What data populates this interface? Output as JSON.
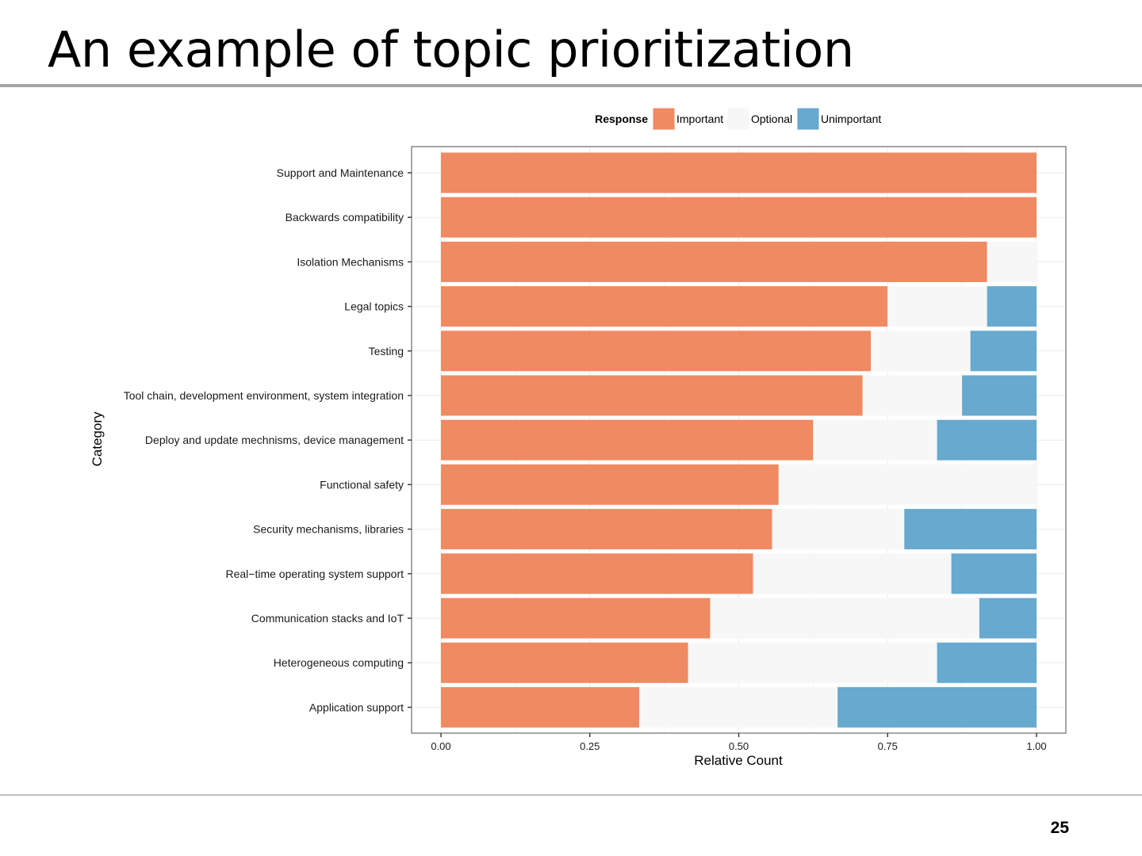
{
  "slide": {
    "title": "An example of topic prioritization",
    "page_number": "25"
  },
  "chart_data": {
    "type": "bar",
    "orientation": "horizontal",
    "stacked": true,
    "xlabel": "Relative Count",
    "ylabel": "Category",
    "xlim": [
      0,
      1
    ],
    "xticks": [
      "0.00",
      "0.25",
      "0.50",
      "0.75",
      "1.00"
    ],
    "grid": true,
    "legend": {
      "title": "Response",
      "position": "top"
    },
    "categories": [
      "Support and Maintenance",
      "Backwards compatibility",
      "Isolation Mechanisms",
      "Legal topics",
      "Testing",
      "Tool chain, development environment, system integration",
      "Deploy and update mechnisms, device management",
      "Functional safety",
      "Security mechanisms, libraries",
      "Real−time operating system support",
      "Communication stacks and IoT",
      "Heterogeneous computing",
      "Application support"
    ],
    "series": [
      {
        "name": "Important",
        "color": "#ef8a62",
        "values": [
          1.0,
          1.0,
          0.917,
          0.75,
          0.722,
          0.708,
          0.625,
          0.567,
          0.556,
          0.524,
          0.452,
          0.415,
          0.333
        ]
      },
      {
        "name": "Optional",
        "color": "#f7f7f7",
        "values": [
          0.0,
          0.0,
          0.083,
          0.167,
          0.167,
          0.167,
          0.208,
          0.433,
          0.222,
          0.333,
          0.452,
          0.418,
          0.333
        ]
      },
      {
        "name": "Unimportant",
        "color": "#67a9cf",
        "values": [
          0.0,
          0.0,
          0.0,
          0.083,
          0.111,
          0.125,
          0.167,
          0.0,
          0.222,
          0.143,
          0.096,
          0.167,
          0.334
        ]
      }
    ]
  }
}
